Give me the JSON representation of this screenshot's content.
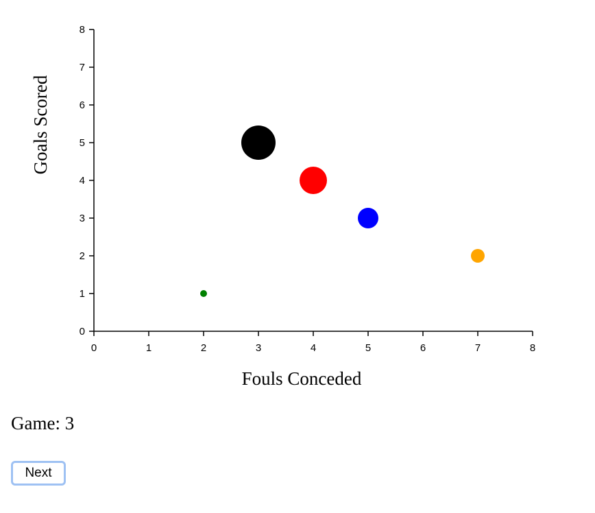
{
  "chart_data": {
    "type": "scatter",
    "xlabel": "Fouls Conceded",
    "ylabel": "Goals Scored",
    "xlim": [
      0,
      8
    ],
    "ylim": [
      0,
      8
    ],
    "x_ticks": [
      "0",
      "1",
      "2",
      "3",
      "4",
      "5",
      "6",
      "7",
      "8"
    ],
    "y_ticks": [
      "0",
      "1",
      "2",
      "3",
      "4",
      "5",
      "6",
      "7",
      "8"
    ],
    "grid": false,
    "points": [
      {
        "x": 2,
        "y": 1,
        "size": 1,
        "color": "#008000"
      },
      {
        "x": 3,
        "y": 5,
        "size": 5,
        "color": "#000000"
      },
      {
        "x": 4,
        "y": 4,
        "size": 4,
        "color": "#ff0000"
      },
      {
        "x": 5,
        "y": 3,
        "size": 3,
        "color": "#0000ff"
      },
      {
        "x": 7,
        "y": 2,
        "size": 2,
        "color": "#ffa500"
      }
    ]
  },
  "game": {
    "label": "Game:",
    "value": "3",
    "text": "Game: 3"
  },
  "controls": {
    "next_label": "Next"
  }
}
